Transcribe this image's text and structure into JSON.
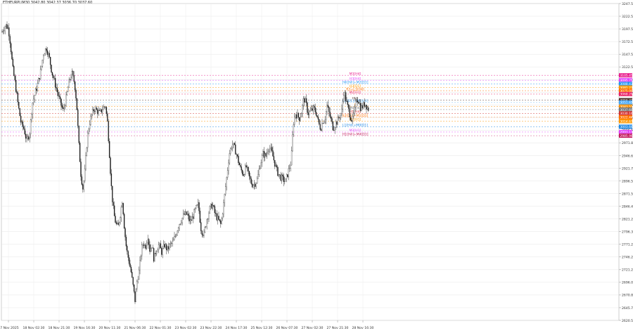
{
  "header": {
    "symbol_ohlc": "ETHEURPLIM30  3042.80  3042.37  3036.70  3037.60"
  },
  "chart_data": {
    "type": "candlestick",
    "title": "",
    "ylim": [
      2620.5,
      3247.5
    ],
    "y_ticks": [
      "3247.50",
      "3222.50",
      "3197.50",
      "3172.50",
      "3147.50",
      "3122.50",
      "3097.50",
      "3072.50",
      "3046.60",
      "3021.60",
      "2996.60",
      "2971.80",
      "2946.60",
      "2921.70",
      "2896.50",
      "2871.50",
      "2846.40",
      "2821.20",
      "2796.30",
      "2771.20",
      "2746.20",
      "2721.20",
      "2696.00",
      "2670.80",
      "2645.70",
      "2620.50"
    ],
    "x_ticks": [
      "17 Nov 2025",
      "18 Nov 02:30",
      "18 Nov 21:30",
      "19 Nov 16:30",
      "20 Nov 11:30",
      "21 Nov 06:30",
      "22 Nov 01:30",
      "23 Nov 02:30",
      "23 Nov 22:30",
      "24 Nov 17:30",
      "25 Nov 12:30",
      "26 Nov 07:30",
      "27 Nov 02:30",
      "27 Nov 21:30",
      "28 Nov 16:30"
    ],
    "close_path": [
      [
        0,
        3180
      ],
      [
        4,
        3195
      ],
      [
        8,
        3205
      ],
      [
        12,
        3198
      ],
      [
        15,
        3165
      ],
      [
        18,
        3120
      ],
      [
        22,
        3085
      ],
      [
        26,
        3045
      ],
      [
        30,
        3010
      ],
      [
        34,
        3000
      ],
      [
        38,
        2975
      ],
      [
        42,
        2990
      ],
      [
        46,
        3050
      ],
      [
        50,
        3070
      ],
      [
        54,
        3090
      ],
      [
        58,
        3115
      ],
      [
        62,
        3150
      ],
      [
        66,
        3160
      ],
      [
        70,
        3140
      ],
      [
        74,
        3110
      ],
      [
        78,
        3090
      ],
      [
        82,
        3070
      ],
      [
        86,
        3050
      ],
      [
        90,
        3035
      ],
      [
        94,
        3060
      ],
      [
        98,
        3090
      ],
      [
        102,
        3110
      ],
      [
        106,
        3090
      ],
      [
        109,
        3050
      ],
      [
        112,
        2970
      ],
      [
        115,
        2910
      ],
      [
        118,
        2880
      ],
      [
        121,
        2920
      ],
      [
        124,
        2980
      ],
      [
        127,
        3010
      ],
      [
        130,
        3025
      ],
      [
        134,
        3040
      ],
      [
        138,
        3035
      ],
      [
        142,
        3030
      ],
      [
        146,
        3040
      ],
      [
        150,
        3045
      ],
      [
        153,
        3010
      ],
      [
        156,
        2940
      ],
      [
        159,
        2870
      ],
      [
        162,
        2830
      ],
      [
        165,
        2810
      ],
      [
        168,
        2805
      ],
      [
        171,
        2830
      ],
      [
        174,
        2860
      ],
      [
        177,
        2800
      ],
      [
        180,
        2760
      ],
      [
        183,
        2740
      ],
      [
        186,
        2720
      ],
      [
        189,
        2690
      ],
      [
        192,
        2660
      ],
      [
        195,
        2700
      ],
      [
        198,
        2720
      ],
      [
        201,
        2760
      ],
      [
        204,
        2775
      ],
      [
        207,
        2765
      ],
      [
        210,
        2790
      ],
      [
        213,
        2760
      ],
      [
        216,
        2770
      ],
      [
        219,
        2740
      ],
      [
        222,
        2760
      ],
      [
        226,
        2770
      ],
      [
        230,
        2755
      ],
      [
        234,
        2770
      ],
      [
        238,
        2760
      ],
      [
        242,
        2770
      ],
      [
        246,
        2775
      ],
      [
        250,
        2790
      ],
      [
        254,
        2810
      ],
      [
        258,
        2820
      ],
      [
        262,
        2830
      ],
      [
        266,
        2830
      ],
      [
        270,
        2815
      ],
      [
        274,
        2825
      ],
      [
        278,
        2840
      ],
      [
        282,
        2850
      ],
      [
        286,
        2800
      ],
      [
        290,
        2790
      ],
      [
        294,
        2820
      ],
      [
        298,
        2840
      ],
      [
        302,
        2850
      ],
      [
        306,
        2830
      ],
      [
        310,
        2820
      ],
      [
        314,
        2810
      ],
      [
        318,
        2850
      ],
      [
        322,
        2900
      ],
      [
        326,
        2950
      ],
      [
        330,
        2970
      ],
      [
        334,
        2960
      ],
      [
        338,
        2940
      ],
      [
        342,
        2920
      ],
      [
        346,
        2910
      ],
      [
        350,
        2925
      ],
      [
        354,
        2905
      ],
      [
        358,
        2890
      ],
      [
        362,
        2890
      ],
      [
        366,
        2900
      ],
      [
        370,
        2930
      ],
      [
        374,
        2950
      ],
      [
        378,
        2945
      ],
      [
        382,
        2965
      ],
      [
        386,
        2955
      ],
      [
        390,
        2935
      ],
      [
        394,
        2915
      ],
      [
        398,
        2905
      ],
      [
        402,
        2900
      ],
      [
        406,
        2895
      ],
      [
        410,
        2915
      ],
      [
        414,
        2935
      ],
      [
        417,
        3010
      ],
      [
        420,
        3030
      ],
      [
        423,
        3025
      ],
      [
        426,
        3020
      ],
      [
        429,
        3035
      ],
      [
        432,
        3060
      ],
      [
        435,
        3050
      ],
      [
        438,
        3030
      ],
      [
        442,
        3035
      ],
      [
        446,
        3040
      ],
      [
        450,
        3030
      ],
      [
        453,
        3010
      ],
      [
        456,
        3000
      ],
      [
        459,
        3015
      ],
      [
        462,
        3020
      ],
      [
        465,
        3045
      ],
      [
        468,
        3030
      ],
      [
        471,
        3015
      ],
      [
        474,
        3000
      ],
      [
        477,
        3010
      ],
      [
        480,
        3015
      ],
      [
        483,
        3025
      ],
      [
        486,
        3035
      ],
      [
        489,
        3075
      ],
      [
        492,
        3055
      ],
      [
        495,
        3040
      ],
      [
        498,
        3025
      ],
      [
        501,
        3015
      ],
      [
        504,
        3035
      ],
      [
        507,
        3060
      ],
      [
        510,
        3055
      ],
      [
        513,
        3040
      ],
      [
        516,
        3045
      ],
      [
        519,
        3050
      ],
      [
        522,
        3042
      ],
      [
        525,
        3037
      ]
    ],
    "level_lines": [
      {
        "label": "M3[H4]",
        "value": 3105.45,
        "color": "#e91e8c",
        "right_label": "3105.45"
      },
      {
        "label": "H3[H4]",
        "value": 3095.75,
        "color": "#e040fb",
        "right_label": "3095.75"
      },
      {
        "label": "H4[H4]+M2[D1]",
        "value": 3088.43,
        "color": "#2196f3",
        "right_label": "3088.43"
      },
      {
        "label": "H3[D1]",
        "value": 3081.21,
        "color": "#ff9800",
        "right_label": "3081.21"
      },
      {
        "label": "R3+L3[H4]",
        "value": 3075.0,
        "color": "#ff6f00",
        "right_label": "3075.00"
      },
      {
        "label": "M2[H1]",
        "value": 3068.29,
        "color": "#e91e63",
        "right_label": "3068.29"
      },
      {
        "label": "HL1",
        "value": 3056.32,
        "color": "#4e342e",
        "right_label": "3056.32"
      },
      {
        "label": "H4[D1]+M1[H4]",
        "value": 3051.65,
        "color": "#42a5f5",
        "right_label": "3051.65"
      },
      {
        "label": "P",
        "value": 3043.51,
        "color": "#ff8f00",
        "right_label": "3043.51"
      },
      {
        "label": "M0[H4]",
        "value": 3037.6,
        "color": "#757575",
        "right_label": "3037.60"
      },
      {
        "label": "H1[H4]",
        "value": 3030.16,
        "color": "#d32f2f",
        "right_label": "3030.16"
      },
      {
        "label": "S2[D1]+M1[D1]",
        "value": 3022.44,
        "color": "#ff6f00",
        "right_label": "3022.44"
      },
      {
        "label": "M0[H1]",
        "value": 3014.67,
        "color": "#ff9800",
        "right_label": "3014.67"
      },
      {
        "label": "L1[H4]+M0[D1]",
        "value": 3003.66,
        "color": "#1e88e5",
        "right_label": "3003.66"
      },
      {
        "label": "M3[H1]",
        "value": 2993.17,
        "color": "#e040fb",
        "right_label": "2993.17"
      },
      {
        "label": "H1[H4]+M4[D1]",
        "value": 2985.96,
        "color": "#c2185b",
        "right_label": "2985.96"
      }
    ]
  }
}
